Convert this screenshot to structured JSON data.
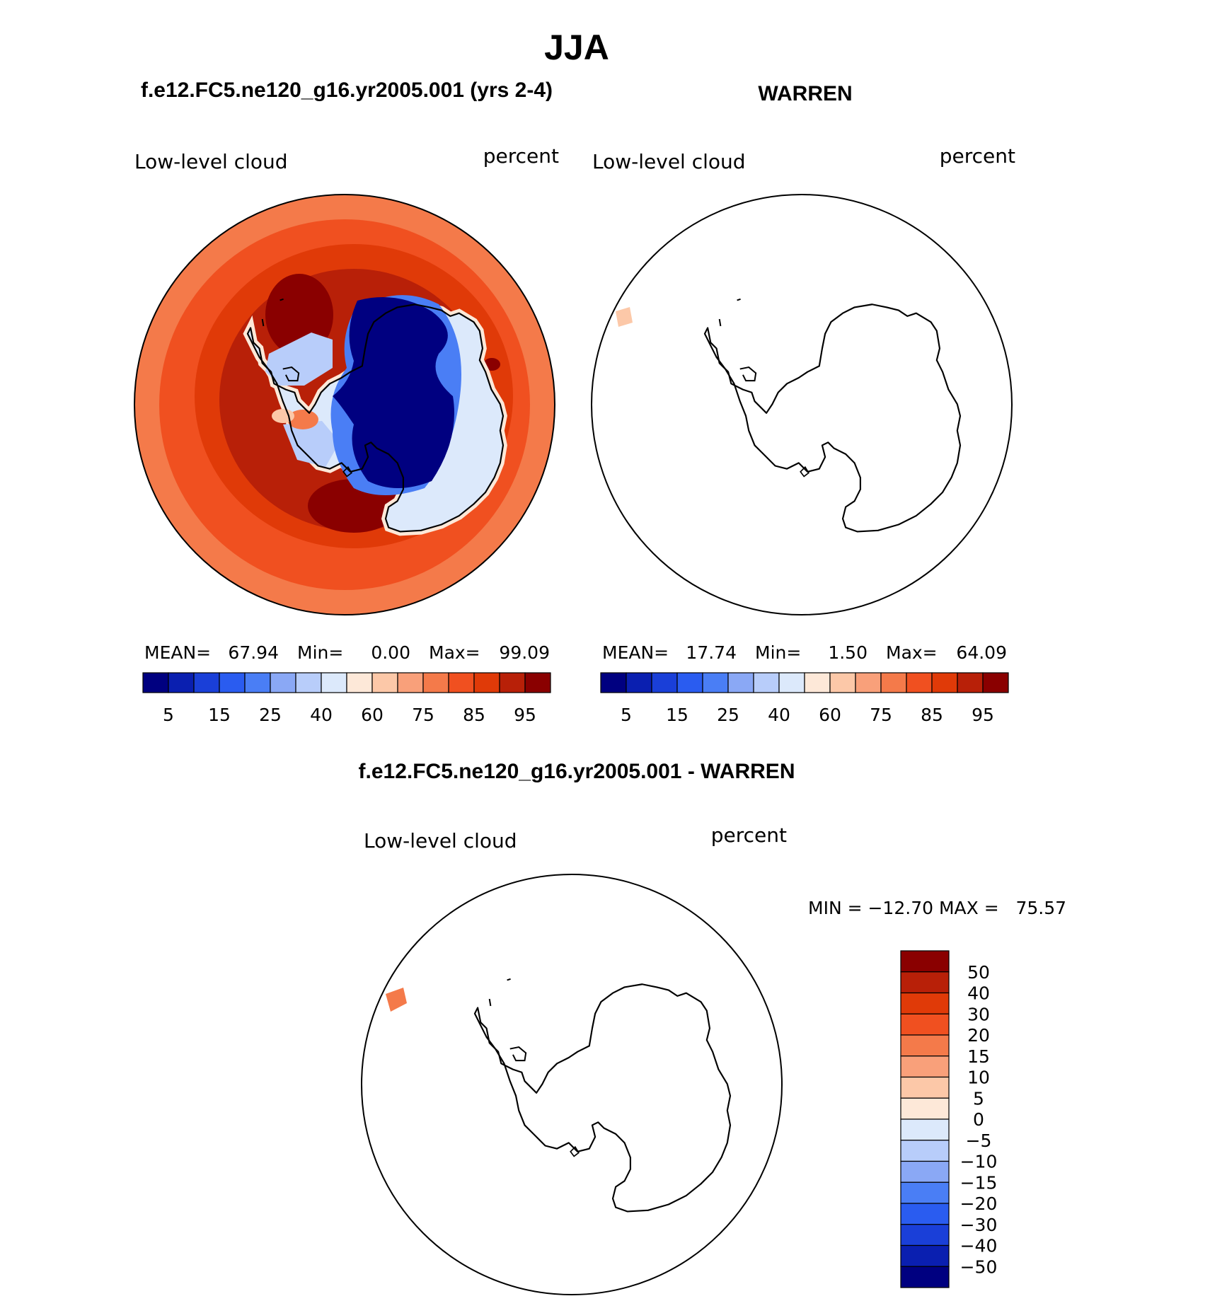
{
  "season": "JJA",
  "panels": [
    {
      "case": "f.e12.FC5.ne120_g16.yr2005.001 (yrs 2-4)",
      "variable": "Low-level cloud",
      "units": "percent",
      "stats": {
        "mean_label": "MEAN=",
        "mean": "67.94",
        "min_label": "Min=",
        "min": "0.00",
        "max_label": "Max=",
        "max": "99.09"
      }
    },
    {
      "case": "WARREN",
      "variable": "Low-level cloud",
      "units": "percent",
      "stats": {
        "mean_label": "MEAN=",
        "mean": "17.74",
        "min_label": "Min=",
        "min": "1.50",
        "max_label": "Max=",
        "max": "64.09"
      }
    }
  ],
  "colorbar": {
    "tick_labels": [
      "5",
      "15",
      "25",
      "40",
      "60",
      "75",
      "85",
      "95"
    ],
    "colors": [
      "#000080",
      "#0a1fb0",
      "#1a3fd8",
      "#2a5cf0",
      "#4a7ef5",
      "#8aa8f5",
      "#b8cdfa",
      "#dce9fb",
      "#fde8d8",
      "#fcc8a8",
      "#f9a07a",
      "#f47a4a",
      "#f05020",
      "#e03a08",
      "#b82008",
      "#8a0000"
    ]
  },
  "difference": {
    "title": "f.e12.FC5.ne120_g16.yr2005.001 - WARREN",
    "variable": "Low-level cloud",
    "units": "percent",
    "range_text": "MIN = −12.70 MAX =   75.57",
    "colorbar": {
      "labels_top_to_bottom": [
        "50",
        "40",
        "30",
        "20",
        "15",
        "10",
        "5",
        "0",
        "−5",
        "−10",
        "−15",
        "−20",
        "−30",
        "−40",
        "−50"
      ],
      "colors_top_to_bottom": [
        "#8a0000",
        "#b82008",
        "#e03a08",
        "#f05020",
        "#f47a4a",
        "#f9a07a",
        "#fcc8a8",
        "#fde8d8",
        "#dce9fb",
        "#b8cdfa",
        "#8aa8f5",
        "#4a7ef5",
        "#2a5cf0",
        "#1a3fd8",
        "#0a1fb0",
        "#000080"
      ]
    }
  }
}
